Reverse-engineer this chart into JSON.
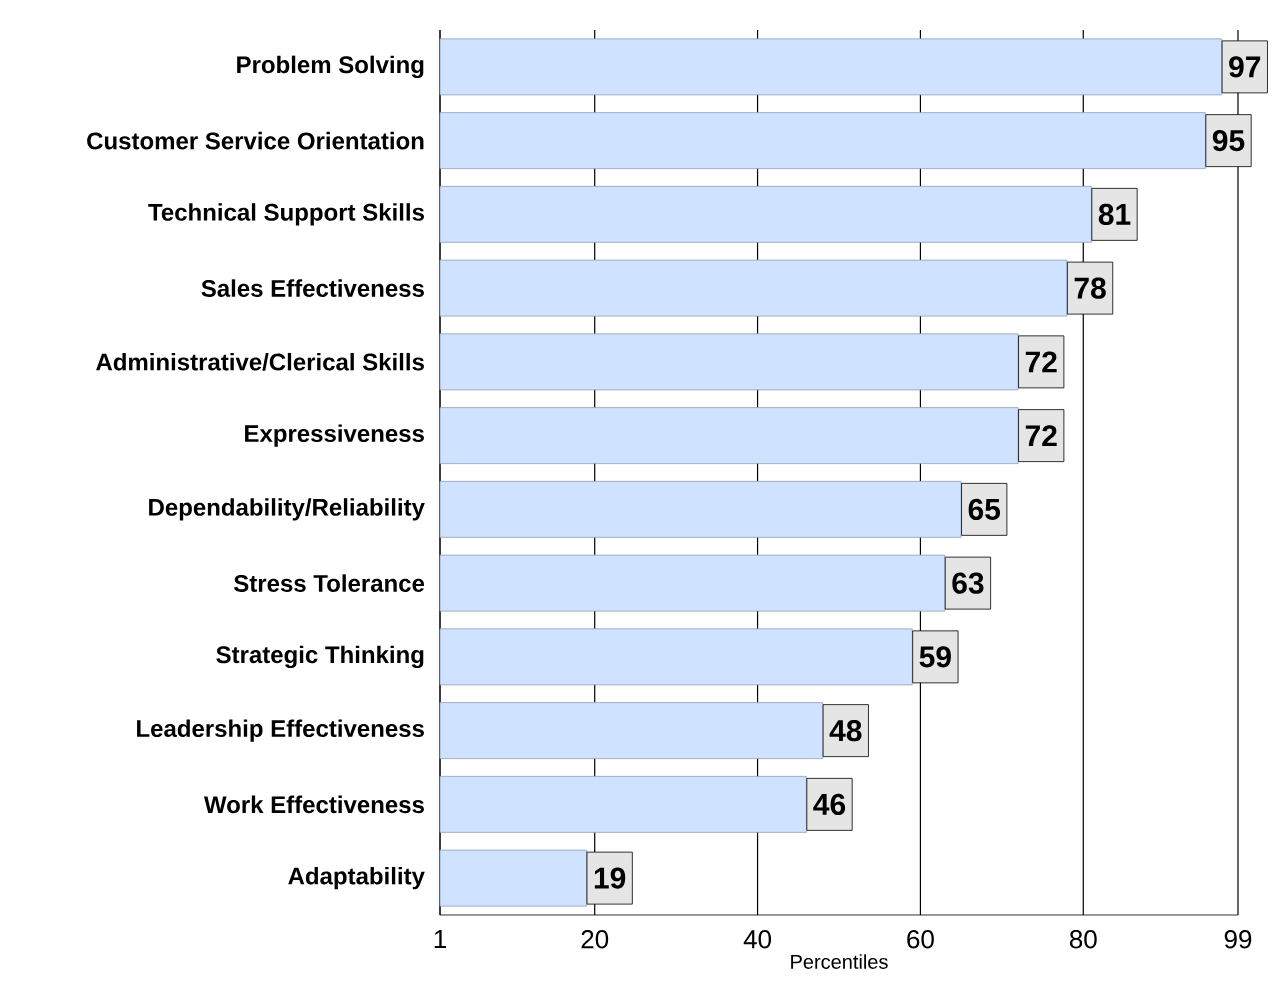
{
  "chart_data": {
    "type": "bar",
    "orientation": "horizontal",
    "categories": [
      "Problem Solving",
      "Customer Service Orientation",
      "Technical Support Skills",
      "Sales Effectiveness",
      "Administrative/Clerical Skills",
      "Expressiveness",
      "Dependability/Reliability",
      "Stress Tolerance",
      "Strategic Thinking",
      "Leadership Effectiveness",
      "Work Effectiveness",
      "Adaptability"
    ],
    "values": [
      97,
      95,
      81,
      78,
      72,
      72,
      65,
      63,
      59,
      48,
      46,
      19
    ],
    "color": "#cfe2ff",
    "data_labels": true,
    "xlabel": "Percentiles",
    "xlim": [
      1,
      99
    ],
    "xticks": [
      1,
      20,
      40,
      60,
      80,
      99
    ],
    "grid": "x"
  }
}
